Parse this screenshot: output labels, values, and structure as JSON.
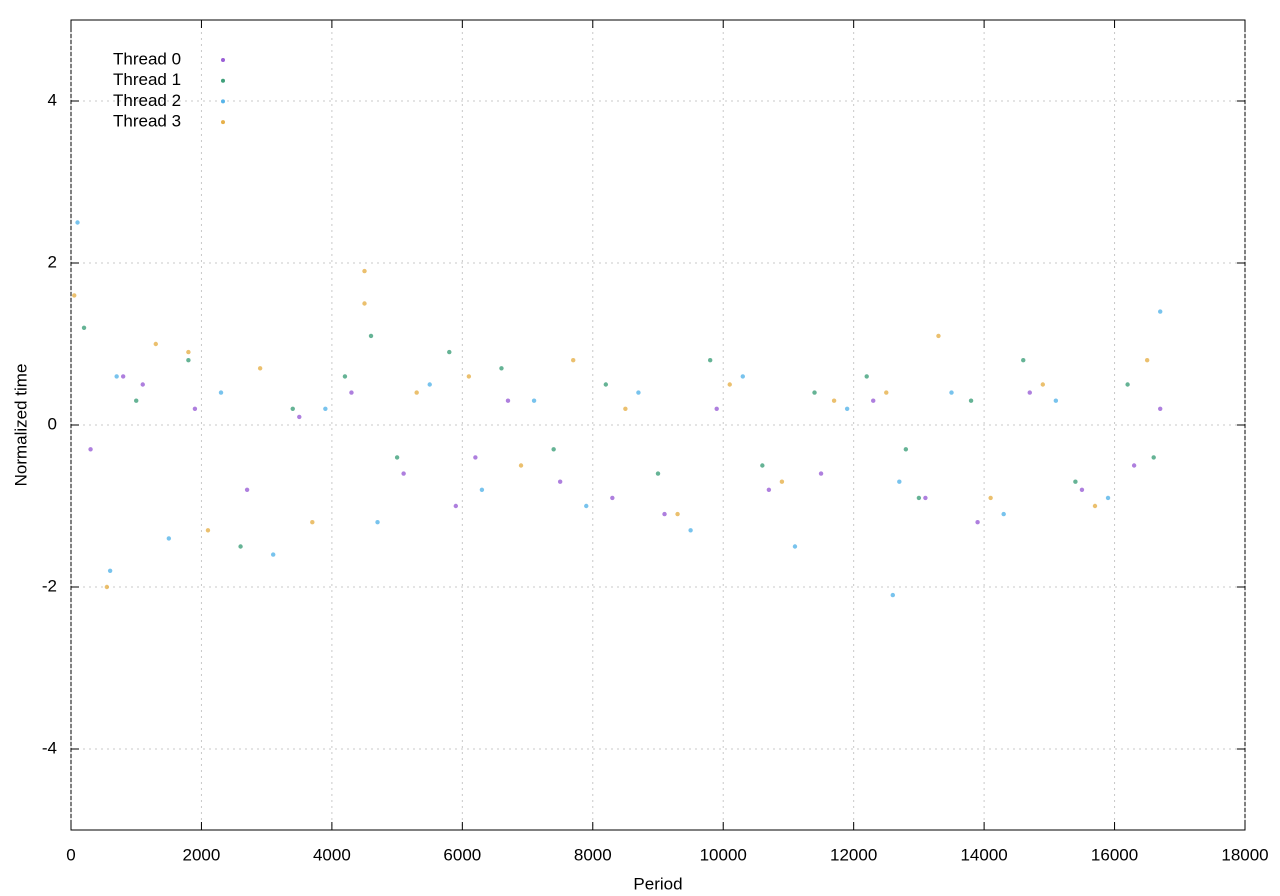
{
  "chart_data": {
    "type": "scatter",
    "x_label": "Period",
    "y_label": "Normalized time",
    "xlim": [
      0,
      18000
    ],
    "ylim": [
      -5,
      5
    ],
    "xticks": [
      0,
      2000,
      4000,
      6000,
      8000,
      10000,
      12000,
      14000,
      16000,
      18000
    ],
    "yticks": [
      -4,
      -2,
      0,
      2,
      4
    ],
    "grid": true,
    "legend": "top-left",
    "series": [
      {
        "name": "Thread 0",
        "color": "#9a5fd6",
        "x": [
          300,
          1100,
          1900,
          2700,
          3500,
          4300,
          5100,
          5900,
          6700,
          7500,
          8300,
          9100,
          9900,
          10700,
          11500,
          12300,
          13100,
          13900,
          14700,
          15500,
          16300,
          16700,
          800,
          6200
        ],
        "values": [
          -0.3,
          0.5,
          0.2,
          -0.8,
          0.1,
          0.4,
          -0.6,
          -1.0,
          0.3,
          -0.7,
          -0.9,
          -1.1,
          0.2,
          -0.8,
          -0.6,
          0.3,
          -0.9,
          -1.2,
          0.4,
          -0.8,
          -0.5,
          0.2,
          0.6,
          -0.4
        ]
      },
      {
        "name": "Thread 1",
        "color": "#3fa07a",
        "x": [
          200,
          1000,
          1800,
          2600,
          3400,
          4200,
          5000,
          5800,
          6600,
          7400,
          8200,
          9000,
          9800,
          10600,
          11400,
          12200,
          13000,
          13800,
          14600,
          15400,
          16200,
          16600,
          4600,
          12800
        ],
        "values": [
          1.2,
          0.3,
          0.8,
          -1.5,
          0.2,
          0.6,
          -0.4,
          0.9,
          0.7,
          -0.3,
          0.5,
          -0.6,
          0.8,
          -0.5,
          0.4,
          0.6,
          -0.9,
          0.3,
          0.8,
          -0.7,
          0.5,
          -0.4,
          1.1,
          -0.3
        ]
      },
      {
        "name": "Thread 2",
        "color": "#56b4e9",
        "x": [
          100,
          700,
          1500,
          2300,
          3100,
          3900,
          4700,
          5500,
          6300,
          7100,
          7900,
          8700,
          9500,
          10300,
          11100,
          11900,
          12700,
          13500,
          14300,
          15100,
          15900,
          16700,
          600,
          12600
        ],
        "values": [
          2.5,
          0.6,
          -1.4,
          0.4,
          -1.6,
          0.2,
          -1.2,
          0.5,
          -0.8,
          0.3,
          -1.0,
          0.4,
          -1.3,
          0.6,
          -1.5,
          0.2,
          -0.7,
          0.4,
          -1.1,
          0.3,
          -0.9,
          1.4,
          -1.8,
          -2.1
        ]
      },
      {
        "name": "Thread 3",
        "color": "#e6b04a",
        "x": [
          50,
          550,
          1300,
          2100,
          2900,
          3700,
          4500,
          5300,
          6100,
          6900,
          7700,
          8500,
          9300,
          10100,
          10900,
          11700,
          12500,
          13300,
          14100,
          14900,
          15700,
          16500,
          1800,
          4500
        ],
        "values": [
          1.6,
          -2.0,
          1.0,
          -1.3,
          0.7,
          -1.2,
          1.5,
          0.4,
          0.6,
          -0.5,
          0.8,
          0.2,
          -1.1,
          0.5,
          -0.7,
          0.3,
          0.4,
          1.1,
          -0.9,
          0.5,
          -1.0,
          0.8,
          0.9,
          1.9
        ]
      }
    ]
  }
}
